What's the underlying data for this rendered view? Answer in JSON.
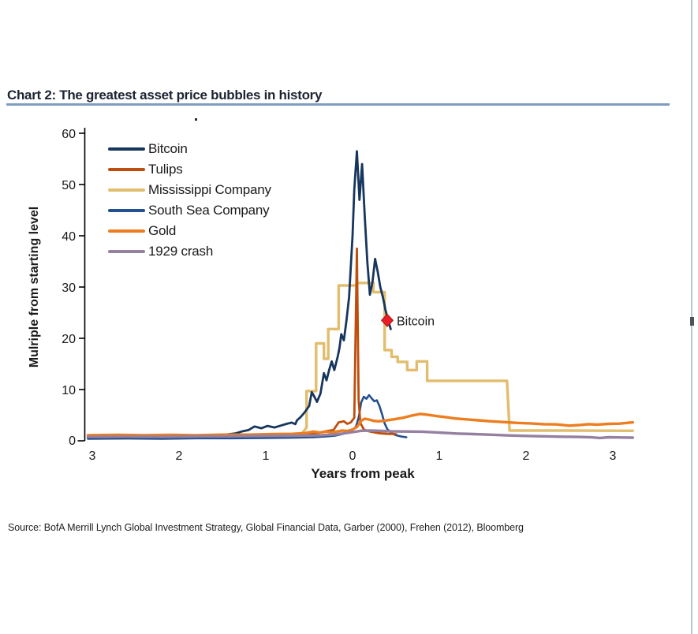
{
  "title": {
    "text": "Chart 2: The greatest asset price bubbles in history"
  },
  "source": {
    "text": "Source:  BofA Merrill Lynch Global Investment Strategy, Global Financial Data, Garber (2000), Frehen (2012),  Bloomberg"
  },
  "colors": {
    "title_underline": "#7d9cc0",
    "axis": "#000000",
    "annotation_marker": "#ed1c24",
    "scrollbar_track": "#bcc5cd",
    "scrollbar_thumb": "#4b5258"
  },
  "chart_data": {
    "type": "line",
    "title": "Chart 2: The greatest asset price bubbles in history",
    "xlabel": "Years from peak",
    "ylabel": "Mulriple from starting level",
    "xlim": [
      -3.1,
      3.3
    ],
    "ylim": [
      0,
      60
    ],
    "grid": false,
    "legend_position": "top-left",
    "x_ticks": [
      "3",
      "2",
      "1",
      "0",
      "1",
      "2",
      "3"
    ],
    "x_tick_values": [
      -3,
      -2,
      -1,
      0,
      1,
      2,
      3
    ],
    "y_ticks": [
      "60",
      "50",
      "40",
      "30",
      "20",
      "10",
      "0"
    ],
    "y_tick_values": [
      60,
      50,
      40,
      30,
      20,
      10,
      0
    ],
    "annotation": {
      "label": "Bitcoin",
      "x": 0.4,
      "y": 23.5,
      "marker": "diamond",
      "color": "#ed1c24"
    },
    "series": [
      {
        "name": "Bitcoin",
        "color": "#17365d",
        "width": 2.8,
        "points": [
          [
            -3.05,
            0.6
          ],
          [
            -2.85,
            0.7
          ],
          [
            -2.65,
            0.62
          ],
          [
            -2.45,
            0.75
          ],
          [
            -2.25,
            0.72
          ],
          [
            -2.05,
            0.82
          ],
          [
            -1.9,
            0.9
          ],
          [
            -1.75,
            0.88
          ],
          [
            -1.6,
            1.0
          ],
          [
            -1.5,
            1.15
          ],
          [
            -1.42,
            1.3
          ],
          [
            -1.35,
            1.45
          ],
          [
            -1.28,
            1.8
          ],
          [
            -1.2,
            2.1
          ],
          [
            -1.13,
            2.8
          ],
          [
            -1.05,
            2.45
          ],
          [
            -0.98,
            2.9
          ],
          [
            -0.9,
            2.6
          ],
          [
            -0.83,
            2.95
          ],
          [
            -0.76,
            3.3
          ],
          [
            -0.7,
            3.55
          ],
          [
            -0.66,
            3.25
          ],
          [
            -0.64,
            4.0
          ],
          [
            -0.6,
            4.6
          ],
          [
            -0.55,
            5.6
          ],
          [
            -0.5,
            6.8
          ],
          [
            -0.47,
            9.5
          ],
          [
            -0.44,
            8.6
          ],
          [
            -0.41,
            7.6
          ],
          [
            -0.37,
            9.2
          ],
          [
            -0.33,
            13.2
          ],
          [
            -0.3,
            11.8
          ],
          [
            -0.27,
            13.8
          ],
          [
            -0.24,
            15.5
          ],
          [
            -0.21,
            13.8
          ],
          [
            -0.17,
            16.5
          ],
          [
            -0.15,
            18.2
          ],
          [
            -0.13,
            20.8
          ],
          [
            -0.1,
            19.6
          ],
          [
            -0.07,
            23.5
          ],
          [
            -0.04,
            28.0
          ],
          [
            -0.02,
            34.0
          ],
          [
            0.0,
            40.0
          ],
          [
            0.02,
            49.0
          ],
          [
            0.05,
            56.5
          ],
          [
            0.08,
            47.0
          ],
          [
            0.11,
            54.0
          ],
          [
            0.14,
            44.0
          ],
          [
            0.17,
            35.0
          ],
          [
            0.2,
            28.5
          ],
          [
            0.23,
            31.0
          ],
          [
            0.26,
            35.5
          ],
          [
            0.29,
            33.0
          ],
          [
            0.32,
            30.0
          ],
          [
            0.35,
            28.0
          ],
          [
            0.38,
            25.5
          ],
          [
            0.41,
            23.5
          ],
          [
            0.44,
            21.8
          ]
        ]
      },
      {
        "name": "Tulips",
        "color": "#bf4e0c",
        "width": 2.8,
        "points": [
          [
            -3.05,
            0.9
          ],
          [
            -2.6,
            0.95
          ],
          [
            -2.2,
            0.9
          ],
          [
            -1.8,
            1.0
          ],
          [
            -1.4,
            1.0
          ],
          [
            -1.0,
            1.05
          ],
          [
            -0.7,
            1.1
          ],
          [
            -0.5,
            1.3
          ],
          [
            -0.4,
            1.5
          ],
          [
            -0.3,
            1.9
          ],
          [
            -0.22,
            2.1
          ],
          [
            -0.16,
            3.6
          ],
          [
            -0.1,
            3.8
          ],
          [
            -0.06,
            3.3
          ],
          [
            -0.02,
            3.6
          ],
          [
            0.02,
            4.5
          ],
          [
            0.05,
            37.5
          ],
          [
            0.07,
            8.0
          ],
          [
            0.09,
            3.5
          ],
          [
            0.13,
            2.2
          ],
          [
            0.2,
            1.8
          ],
          [
            0.3,
            1.5
          ],
          [
            0.4,
            1.35
          ],
          [
            0.5,
            1.3
          ]
        ]
      },
      {
        "name": "Mississippi Company",
        "color": "#e2bd6e",
        "width": 3.4,
        "points": [
          [
            -3.05,
            0.95
          ],
          [
            -2.0,
            1.0
          ],
          [
            -1.0,
            1.05
          ],
          [
            -0.7,
            1.1
          ],
          [
            -0.58,
            1.5
          ],
          [
            -0.53,
            2.6
          ],
          [
            -0.53,
            9.7
          ],
          [
            -0.42,
            9.7
          ],
          [
            -0.42,
            19.0
          ],
          [
            -0.33,
            19.0
          ],
          [
            -0.33,
            16.0
          ],
          [
            -0.28,
            16.0
          ],
          [
            -0.28,
            21.8
          ],
          [
            -0.16,
            21.8
          ],
          [
            -0.16,
            30.3
          ],
          [
            0.05,
            30.3
          ],
          [
            0.05,
            30.8
          ],
          [
            0.24,
            30.8
          ],
          [
            0.24,
            29.0
          ],
          [
            0.37,
            29.0
          ],
          [
            0.37,
            17.7
          ],
          [
            0.45,
            17.7
          ],
          [
            0.45,
            16.4
          ],
          [
            0.52,
            16.4
          ],
          [
            0.52,
            15.4
          ],
          [
            0.63,
            15.4
          ],
          [
            0.63,
            13.8
          ],
          [
            0.74,
            13.8
          ],
          [
            0.74,
            15.5
          ],
          [
            0.86,
            15.5
          ],
          [
            0.86,
            11.7
          ],
          [
            1.78,
            11.7
          ],
          [
            1.81,
            2.0
          ],
          [
            2.5,
            2.0
          ],
          [
            3.23,
            1.95
          ]
        ]
      },
      {
        "name": "South Sea Company",
        "color": "#24508f",
        "width": 2.6,
        "points": [
          [
            -3.05,
            0.4
          ],
          [
            -2.6,
            0.45
          ],
          [
            -2.2,
            0.4
          ],
          [
            -1.8,
            0.5
          ],
          [
            -1.4,
            0.5
          ],
          [
            -1.0,
            0.55
          ],
          [
            -0.7,
            0.6
          ],
          [
            -0.45,
            0.7
          ],
          [
            -0.3,
            0.85
          ],
          [
            -0.2,
            1.0
          ],
          [
            -0.12,
            1.3
          ],
          [
            -0.05,
            1.7
          ],
          [
            0.0,
            2.1
          ],
          [
            0.04,
            2.8
          ],
          [
            0.07,
            4.5
          ],
          [
            0.1,
            7.5
          ],
          [
            0.13,
            8.6
          ],
          [
            0.16,
            8.2
          ],
          [
            0.19,
            8.9
          ],
          [
            0.22,
            8.3
          ],
          [
            0.25,
            7.7
          ],
          [
            0.28,
            7.9
          ],
          [
            0.31,
            6.8
          ],
          [
            0.34,
            5.2
          ],
          [
            0.37,
            3.4
          ],
          [
            0.4,
            2.3
          ],
          [
            0.44,
            1.6
          ],
          [
            0.5,
            1.1
          ],
          [
            0.56,
            0.85
          ],
          [
            0.62,
            0.7
          ]
        ]
      },
      {
        "name": "Gold",
        "color": "#ed7d1f",
        "width": 3.4,
        "points": [
          [
            -3.05,
            1.1
          ],
          [
            -2.7,
            1.15
          ],
          [
            -2.4,
            1.1
          ],
          [
            -2.1,
            1.15
          ],
          [
            -1.8,
            1.1
          ],
          [
            -1.5,
            1.2
          ],
          [
            -1.2,
            1.2
          ],
          [
            -0.9,
            1.3
          ],
          [
            -0.7,
            1.35
          ],
          [
            -0.55,
            1.5
          ],
          [
            -0.45,
            1.8
          ],
          [
            -0.38,
            1.6
          ],
          [
            -0.3,
            1.8
          ],
          [
            -0.24,
            1.65
          ],
          [
            -0.18,
            1.8
          ],
          [
            -0.12,
            2.0
          ],
          [
            -0.06,
            1.9
          ],
          [
            0.0,
            2.2
          ],
          [
            0.05,
            2.7
          ],
          [
            0.1,
            3.9
          ],
          [
            0.14,
            4.3
          ],
          [
            0.19,
            4.15
          ],
          [
            0.24,
            3.9
          ],
          [
            0.3,
            3.8
          ],
          [
            0.38,
            3.95
          ],
          [
            0.48,
            4.2
          ],
          [
            0.58,
            4.5
          ],
          [
            0.68,
            4.9
          ],
          [
            0.78,
            5.25
          ],
          [
            0.88,
            5.05
          ],
          [
            0.98,
            4.8
          ],
          [
            1.08,
            4.6
          ],
          [
            1.18,
            4.35
          ],
          [
            1.3,
            4.2
          ],
          [
            1.45,
            4.0
          ],
          [
            1.6,
            3.8
          ],
          [
            1.75,
            3.65
          ],
          [
            1.9,
            3.5
          ],
          [
            2.05,
            3.4
          ],
          [
            2.2,
            3.25
          ],
          [
            2.35,
            3.2
          ],
          [
            2.5,
            2.95
          ],
          [
            2.62,
            3.1
          ],
          [
            2.72,
            3.25
          ],
          [
            2.82,
            3.15
          ],
          [
            2.95,
            3.3
          ],
          [
            3.08,
            3.35
          ],
          [
            3.23,
            3.6
          ]
        ]
      },
      {
        "name": "1929 crash",
        "color": "#9580a0",
        "width": 3.4,
        "points": [
          [
            -3.05,
            0.75
          ],
          [
            -2.6,
            0.8
          ],
          [
            -2.2,
            0.78
          ],
          [
            -1.8,
            0.85
          ],
          [
            -1.4,
            0.88
          ],
          [
            -1.0,
            0.95
          ],
          [
            -0.6,
            1.0
          ],
          [
            -0.35,
            1.1
          ],
          [
            -0.2,
            1.25
          ],
          [
            -0.1,
            1.45
          ],
          [
            0.0,
            1.7
          ],
          [
            0.1,
            1.95
          ],
          [
            0.2,
            2.0
          ],
          [
            0.3,
            1.95
          ],
          [
            0.45,
            1.85
          ],
          [
            0.6,
            1.82
          ],
          [
            0.8,
            1.78
          ],
          [
            1.0,
            1.6
          ],
          [
            1.2,
            1.42
          ],
          [
            1.4,
            1.3
          ],
          [
            1.6,
            1.18
          ],
          [
            1.8,
            1.05
          ],
          [
            2.0,
            0.95
          ],
          [
            2.2,
            0.88
          ],
          [
            2.4,
            0.8
          ],
          [
            2.6,
            0.75
          ],
          [
            2.75,
            0.68
          ],
          [
            2.85,
            0.55
          ],
          [
            2.95,
            0.7
          ],
          [
            3.1,
            0.65
          ],
          [
            3.23,
            0.62
          ]
        ]
      }
    ]
  }
}
